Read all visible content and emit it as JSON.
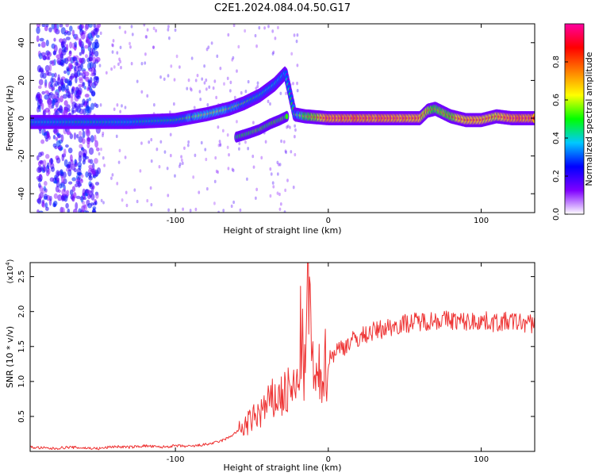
{
  "figure": {
    "title": "C2E1.2024.084.04.50.G17"
  },
  "chart_data": [
    {
      "type": "heatmap",
      "xlabel": "Height of straight line (km)",
      "ylabel": "Frequency (Hz)",
      "xlim": [
        -195,
        135
      ],
      "ylim": [
        -50,
        50
      ],
      "x_ticks": [
        -100,
        0,
        100
      ],
      "x_tick_labels": [
        "-100",
        "0",
        "100"
      ],
      "y_ticks": [
        -40,
        -20,
        0,
        20,
        40
      ],
      "y_tick_labels": [
        "-40",
        "-20",
        "0",
        "20",
        "40"
      ],
      "colorbar": {
        "label": "Normalized spectral amplitude",
        "range": [
          0,
          1
        ],
        "ticks": [
          0.0,
          0.2,
          0.4,
          0.6,
          0.8
        ],
        "tick_labels": [
          "0.0",
          "0.2",
          "0.4",
          "0.6",
          "0.8"
        ],
        "colors": [
          "#ffffff",
          "#7f00ff",
          "#0000ff",
          "#00c8ff",
          "#00ff00",
          "#ffff00",
          "#ff7f00",
          "#ff0000",
          "#ff00a0"
        ]
      },
      "ridge": {
        "x": [
          -195,
          -160,
          -130,
          -100,
          -80,
          -65,
          -55,
          -45,
          -35,
          -28,
          -22,
          -15,
          0,
          20,
          40,
          60,
          65,
          70,
          80,
          90,
          100,
          110,
          120,
          135
        ],
        "frequency": [
          -2,
          -2,
          -2,
          -1,
          2,
          5,
          8,
          12,
          18,
          24,
          2,
          1,
          0,
          0,
          0,
          0,
          4,
          5,
          1,
          -1,
          -1,
          1,
          0,
          0
        ],
        "amplitude": [
          0.4,
          0.45,
          0.4,
          0.5,
          0.65,
          0.6,
          0.55,
          0.45,
          0.4,
          0.35,
          0.55,
          0.7,
          0.95,
          0.95,
          0.95,
          0.9,
          0.8,
          0.75,
          0.8,
          0.9,
          0.9,
          0.85,
          0.95,
          0.95
        ]
      },
      "secondary_branch": {
        "x": [
          -60,
          -52,
          -45,
          -38,
          -32,
          -27
        ],
        "frequency": [
          -10,
          -8,
          -6,
          -3,
          -1,
          1
        ]
      },
      "scatter_region": {
        "x_range": [
          -190,
          -150
        ],
        "frequency_range": [
          -50,
          50
        ]
      }
    },
    {
      "type": "line",
      "xlabel": "Height of straight line (km)",
      "ylabel": "SNR (10 * v/v)",
      "y_multiplier_label": "(x10",
      "y_multiplier_exponent": "4",
      "y_multiplier_close": ")",
      "xlim": [
        -195,
        135
      ],
      "ylim": [
        0,
        2.7
      ],
      "x_ticks": [
        -100,
        0,
        100
      ],
      "x_tick_labels": [
        "-100",
        "0",
        "100"
      ],
      "y_ticks": [
        0.5,
        1.0,
        1.5,
        2.0,
        2.5
      ],
      "y_tick_labels": [
        "0.5",
        "1.0",
        "1.5",
        "2.0",
        "2.5"
      ],
      "series": [
        {
          "color": "#ee3333",
          "x": [
            -195,
            -180,
            -170,
            -150,
            -140,
            -130,
            -120,
            -110,
            -100,
            -90,
            -80,
            -75,
            -70,
            -65,
            -60,
            -55,
            -50,
            -45,
            -40,
            -35,
            -30,
            -25,
            -20,
            -18,
            -15,
            -13,
            -10,
            -8,
            -5,
            0,
            5,
            10,
            15,
            20,
            25,
            30,
            40,
            50,
            60,
            70,
            80,
            90,
            100,
            110,
            120,
            130,
            135
          ],
          "y": [
            0.06,
            0.04,
            0.06,
            0.04,
            0.07,
            0.06,
            0.08,
            0.06,
            0.08,
            0.07,
            0.1,
            0.12,
            0.15,
            0.2,
            0.28,
            0.35,
            0.45,
            0.55,
            0.65,
            0.75,
            0.8,
            0.85,
            0.9,
            1.7,
            1.0,
            2.7,
            1.1,
            0.9,
            1.15,
            1.3,
            1.45,
            1.5,
            1.58,
            1.62,
            1.68,
            1.72,
            1.78,
            1.83,
            1.86,
            1.88,
            1.88,
            1.85,
            1.87,
            1.84,
            1.86,
            1.83,
            1.82
          ]
        }
      ]
    }
  ]
}
